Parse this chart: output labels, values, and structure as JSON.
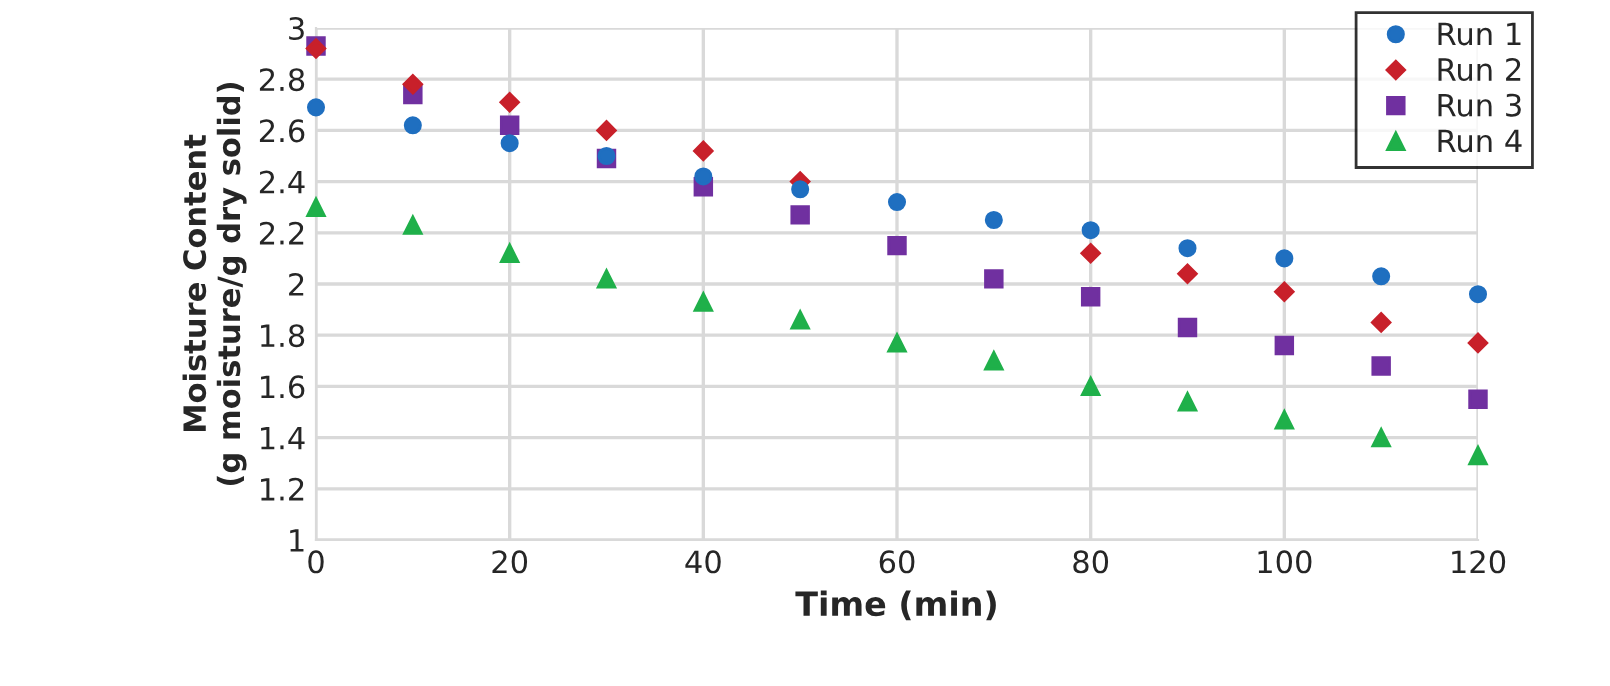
{
  "chart_data": {
    "type": "scatter",
    "xlabel": "Time (min)",
    "ylabel": "Moisture Content\n(g moisture/g dry solid)",
    "x": [
      0,
      10,
      20,
      30,
      40,
      50,
      60,
      70,
      80,
      90,
      100,
      110,
      120
    ],
    "series": [
      {
        "name": "Run 1",
        "color": "#1f6fc0",
        "marker": "circle",
        "values": [
          2.69,
          2.62,
          2.55,
          2.5,
          2.42,
          2.37,
          2.32,
          2.25,
          2.21,
          2.14,
          2.1,
          2.03,
          1.96
        ]
      },
      {
        "name": "Run 2",
        "color": "#c8202a",
        "marker": "diamond",
        "values": [
          2.92,
          2.78,
          2.71,
          2.6,
          2.52,
          2.4,
          null,
          null,
          2.12,
          2.04,
          1.97,
          1.85,
          1.77
        ]
      },
      {
        "name": "Run 3",
        "color": "#7030a0",
        "marker": "square",
        "values": [
          2.93,
          2.74,
          2.62,
          2.49,
          2.38,
          2.27,
          2.15,
          2.02,
          1.95,
          1.83,
          1.76,
          1.68,
          1.55
        ]
      },
      {
        "name": "Run 4",
        "color": "#1fb04a",
        "marker": "triangle",
        "values": [
          2.3,
          2.23,
          2.12,
          2.02,
          1.93,
          1.86,
          1.77,
          1.7,
          1.6,
          1.54,
          1.47,
          1.4,
          1.33
        ]
      }
    ],
    "xlim": [
      0,
      120
    ],
    "xticks": [
      0,
      20,
      40,
      60,
      80,
      100,
      120
    ],
    "ylim": [
      1,
      3
    ],
    "yticks": [
      1,
      1.2,
      1.4,
      1.6,
      1.8,
      2,
      2.2,
      2.4,
      2.6,
      2.8,
      3
    ],
    "grid": true,
    "legend": "top right"
  }
}
